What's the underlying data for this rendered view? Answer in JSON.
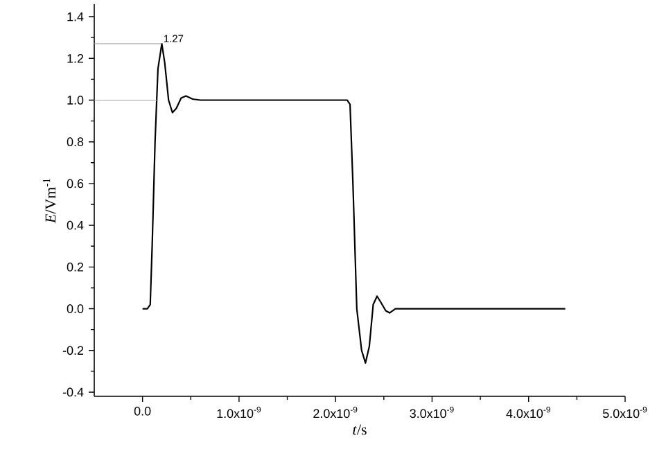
{
  "chart_data": {
    "type": "line",
    "xlabel": "*t*/s",
    "ylabel": "*E*/Vm$^{-1}$",
    "x": [
      0,
      5e-11,
      8e-11,
      1e-10,
      1.3e-10,
      1.6e-10,
      2e-10,
      2.3e-10,
      2.7e-10,
      3.1e-10,
      3.5e-10,
      4e-10,
      4.5e-10,
      5.2e-10,
      6e-10,
      2.12e-09,
      2.15e-09,
      2.18e-09,
      2.22e-09,
      2.27e-09,
      2.31e-09,
      2.35e-09,
      2.39e-09,
      2.43e-09,
      2.47e-09,
      2.52e-09,
      2.56e-09,
      2.62e-09,
      2.7e-09,
      4.38e-09
    ],
    "series": [
      {
        "color": "#000000",
        "values": [
          0,
          0,
          0.02,
          0.3,
          0.8,
          1.15,
          1.27,
          1.18,
          1.0,
          0.94,
          0.96,
          1.01,
          1.02,
          1.005,
          1.0,
          1.0,
          0.98,
          0.6,
          0.0,
          -0.2,
          -0.26,
          -0.18,
          0.02,
          0.06,
          0.03,
          -0.01,
          -0.02,
          0.0,
          0.0,
          0.0
        ]
      }
    ],
    "xlim": [
      -5e-10,
      5e-09
    ],
    "ylim": [
      -0.42,
      1.46
    ],
    "xticks": [
      {
        "value": 0,
        "label": "0.0"
      },
      {
        "value": 1e-09,
        "label": "1.0x10$^{-9}$"
      },
      {
        "value": 2e-09,
        "label": "2.0x10$^{-9}$"
      },
      {
        "value": 3e-09,
        "label": "3.0x10$^{-9}$"
      },
      {
        "value": 4e-09,
        "label": "4.0x10$^{-9}$"
      },
      {
        "value": 5e-09,
        "label": "5.0x10$^{-9}$"
      }
    ],
    "yticks": [
      {
        "value": -0.4,
        "label": "-0.4"
      },
      {
        "value": -0.2,
        "label": "-0.2"
      },
      {
        "value": 0,
        "label": "0.0"
      },
      {
        "value": 0.2,
        "label": "0.2"
      },
      {
        "value": 0.4,
        "label": "0.4"
      },
      {
        "value": 0.6,
        "label": "0.6"
      },
      {
        "value": 0.8,
        "label": "0.8"
      },
      {
        "value": 1.0,
        "label": "1.0"
      },
      {
        "value": 1.2,
        "label": "1.2"
      },
      {
        "value": 1.4,
        "label": "1.4"
      }
    ],
    "ref_lines": [
      {
        "axis": "y",
        "value": 1.27,
        "color": "#a0a0a0"
      },
      {
        "axis": "y",
        "value": 1.0,
        "color": "#a0a0a0"
      }
    ],
    "annotations": [
      {
        "text": "1.27",
        "x": 2e-10,
        "y": 1.27
      }
    ],
    "grid": false,
    "marker": "none",
    "line_style": "solid"
  }
}
